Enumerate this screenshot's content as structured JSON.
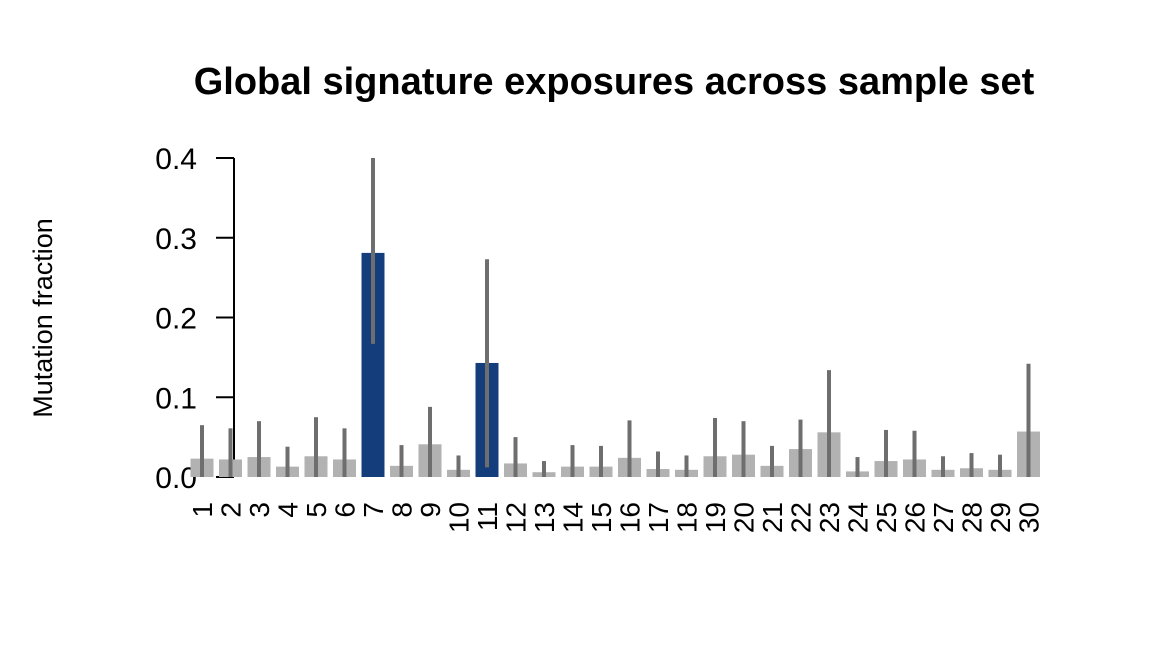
{
  "chart_data": {
    "type": "bar",
    "title": "Global signature exposures across sample set",
    "xlabel": "",
    "ylabel": "Mutation fraction",
    "ylim": [
      0,
      0.4
    ],
    "yticks": [
      "0.0",
      "0.1",
      "0.2",
      "0.3",
      "0.4"
    ],
    "categories": [
      "1",
      "2",
      "3",
      "4",
      "5",
      "6",
      "7",
      "8",
      "9",
      "10",
      "11",
      "12",
      "13",
      "14",
      "15",
      "16",
      "17",
      "18",
      "19",
      "20",
      "21",
      "22",
      "23",
      "24",
      "25",
      "26",
      "27",
      "28",
      "29",
      "30"
    ],
    "values": [
      0.023,
      0.022,
      0.025,
      0.013,
      0.026,
      0.022,
      0.281,
      0.014,
      0.041,
      0.009,
      0.143,
      0.017,
      0.006,
      0.013,
      0.013,
      0.024,
      0.01,
      0.009,
      0.026,
      0.028,
      0.014,
      0.035,
      0.056,
      0.007,
      0.02,
      0.022,
      0.009,
      0.011,
      0.009,
      0.057
    ],
    "error_low": [
      0,
      0,
      0,
      0,
      0,
      0,
      0.167,
      0,
      0,
      0,
      0.012,
      0,
      0,
      0,
      0,
      0,
      0,
      0,
      0,
      0,
      0,
      0,
      0,
      0,
      0,
      0,
      0,
      0,
      0,
      0
    ],
    "error_high": [
      0.065,
      0.061,
      0.07,
      0.038,
      0.075,
      0.061,
      0.4,
      0.04,
      0.088,
      0.027,
      0.273,
      0.05,
      0.02,
      0.04,
      0.039,
      0.071,
      0.032,
      0.027,
      0.074,
      0.07,
      0.039,
      0.072,
      0.134,
      0.025,
      0.059,
      0.058,
      0.026,
      0.03,
      0.028,
      0.142
    ],
    "highlighted": [
      "7",
      "11"
    ],
    "colors": {
      "highlight": "#143d7b",
      "default": "#b2b2b2",
      "error_bar": "#6e6e6e",
      "axis": "#000000"
    },
    "grid": false,
    "legend": "none"
  }
}
